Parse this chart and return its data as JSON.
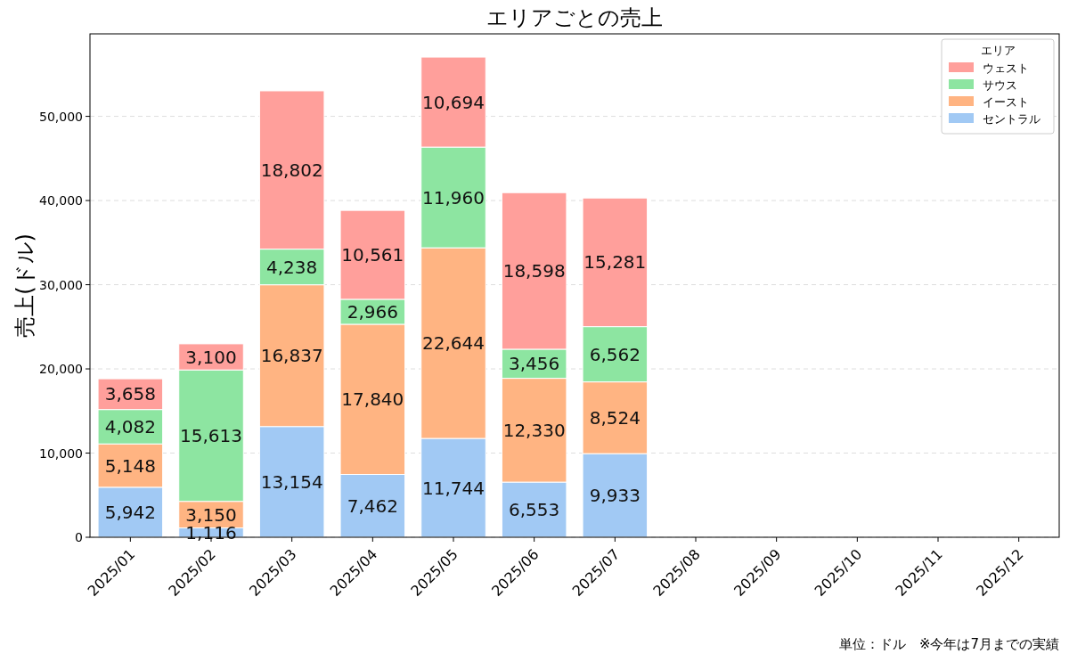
{
  "chart_data": {
    "type": "bar",
    "title": "エリアごとの売上",
    "ylabel": "売上(ドル)",
    "legend_title": "エリア",
    "categories": [
      "2025/01",
      "2025/02",
      "2025/03",
      "2025/04",
      "2025/05",
      "2025/06",
      "2025/07",
      "2025/08",
      "2025/09",
      "2025/10",
      "2025/11",
      "2025/12"
    ],
    "series": [
      {
        "name": "セントラル",
        "color": "#a1c9f4",
        "values": [
          5942,
          1116,
          13154,
          7462,
          11744,
          6553,
          9933,
          null,
          null,
          null,
          null,
          null
        ],
        "value_labels": [
          "5,942",
          "1,116",
          "13,154",
          "7,462",
          "11,744",
          "6,553",
          "9,933",
          null,
          null,
          null,
          null,
          null
        ]
      },
      {
        "name": "イースト",
        "color": "#ffb482",
        "values": [
          5148,
          3150,
          16837,
          17840,
          22644,
          12330,
          8524,
          null,
          null,
          null,
          null,
          null
        ],
        "value_labels": [
          "5,148",
          "3,150",
          "16,837",
          "17,840",
          "22,644",
          "12,330",
          "8,524",
          null,
          null,
          null,
          null,
          null
        ]
      },
      {
        "name": "サウス",
        "color": "#8de5a1",
        "values": [
          4082,
          15613,
          4238,
          2966,
          11960,
          3456,
          6562,
          null,
          null,
          null,
          null,
          null
        ],
        "value_labels": [
          "4,082",
          "15,613",
          "4,238",
          "2,966",
          "11,960",
          "3,456",
          "6,562",
          null,
          null,
          null,
          null,
          null
        ]
      },
      {
        "name": "ウェスト",
        "color": "#ff9f9b",
        "values": [
          3658,
          3100,
          18802,
          10561,
          10694,
          18598,
          15281,
          null,
          null,
          null,
          null,
          null
        ],
        "value_labels": [
          "3,658",
          "3,100",
          "18,802",
          "10,561",
          "10,694",
          "18,598",
          "15,281",
          null,
          null,
          null,
          null,
          null
        ]
      }
    ],
    "stacked": true,
    "ylim": [
      0,
      59800
    ],
    "yticks": [
      {
        "value": 0,
        "label": "0"
      },
      {
        "value": 10000,
        "label": "10,000"
      },
      {
        "value": 20000,
        "label": "20,000"
      },
      {
        "value": 30000,
        "label": "30,000"
      },
      {
        "value": 40000,
        "label": "40,000"
      },
      {
        "value": 50000,
        "label": "50,000"
      }
    ],
    "grid": "y",
    "legend": "top right",
    "annotations": [
      "単位：ドル　※今年は7月までの実績"
    ]
  }
}
